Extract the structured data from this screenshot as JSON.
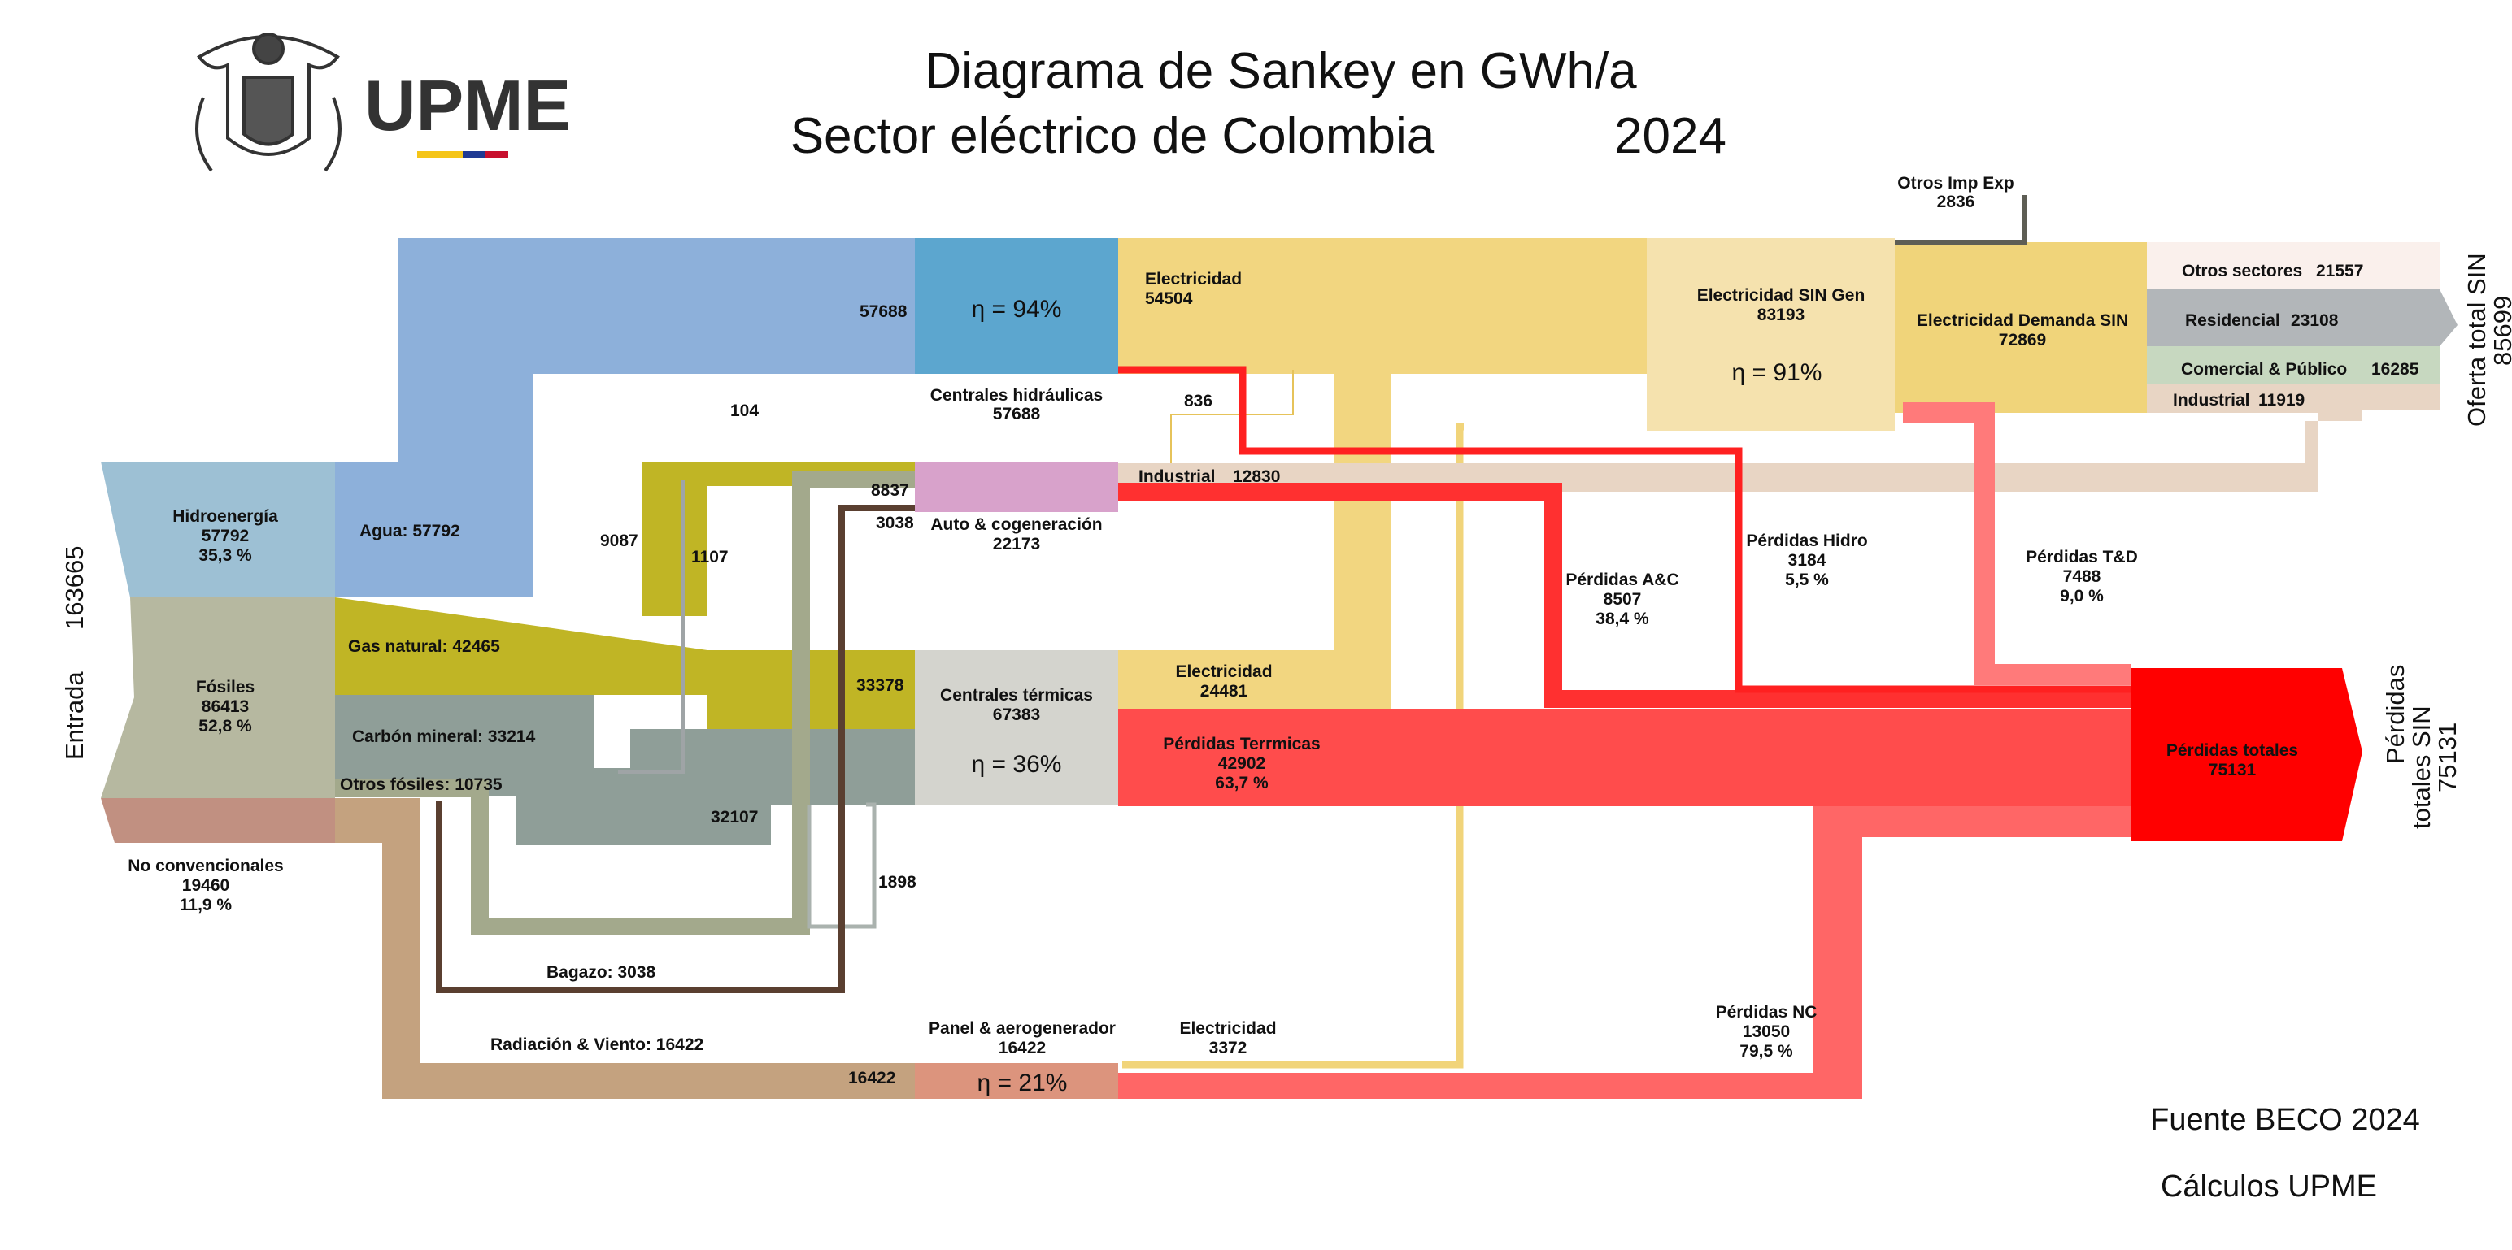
{
  "title": {
    "line1": "Diagrama de Sankey en GWh/a",
    "line2": "Sector eléctrico de Colombia",
    "year": "2024"
  },
  "logo": {
    "text": "UPME",
    "icon": "coat-of-arms-icon"
  },
  "colors": {
    "hydro": "#8DB0DA",
    "hydro_plant": "#5CA6CF",
    "gas": "#C0B525",
    "coal": "#8F9E98",
    "fossils": "#B6B8A0",
    "renewables": "#C4A27F",
    "electricity": "#F2D680",
    "losses": "#FF4C4C",
    "total_losses": "#FF0000",
    "industrial": "#E8D5C4",
    "cogeneration": "#D8A2CB",
    "thermal_plant": "#D4D4CE"
  },
  "input": {
    "entrada_label": "Entrada",
    "entrada_value": "163665",
    "hidroenergia": {
      "name": "Hidroenergía",
      "value": "57792",
      "pct": "35,3 %"
    },
    "fosiles": {
      "name": "Fósiles",
      "value": "86413",
      "pct": "52,8 %"
    },
    "no_convencionales": {
      "name": "No convencionales",
      "value": "19460",
      "pct": "11,9 %"
    }
  },
  "flows": {
    "agua": "Agua: 57792",
    "gas_natural": "Gas natural: 42465",
    "carbon_mineral": "Carbón mineral: 33214",
    "otros_fosiles": "Otros fósiles: 10735",
    "bagazo": "Bagazo: 3038",
    "radiacion_viento": "Radiación & Viento: 16422",
    "v57688": "57688",
    "v104": "104",
    "v9087": "9087",
    "v1107": "1107",
    "v8837": "8837",
    "v3038": "3038",
    "v33378": "33378",
    "v32107": "32107",
    "v1898": "1898",
    "v16422": "16422",
    "v836": "836"
  },
  "plants": {
    "hidraulicas": {
      "name": "Centrales hidráulicas",
      "value": "57688",
      "eta": "η  =  94%"
    },
    "cogeneracion": {
      "name": "Auto & cogeneración",
      "value": "22173"
    },
    "termicas": {
      "name": "Centrales térmicas",
      "value": "67383",
      "eta": "η  =  36%"
    },
    "panel": {
      "name": "Panel & aerogenerador",
      "value": "16422",
      "eta": "η  =  21%"
    }
  },
  "outputs": {
    "elec_hidro": {
      "name": "Electricidad",
      "value": "54504"
    },
    "industrial_cogen": {
      "name": "Industrial",
      "value": "12830"
    },
    "elec_termica": {
      "name": "Electricidad",
      "value": "24481"
    },
    "perdidas_termicas": {
      "name": "Pérdidas Terrmicas",
      "value": "42902",
      "pct": "63,7 %"
    },
    "elec_panel": {
      "name": "Electricidad",
      "value": "3372"
    },
    "elec_sin_gen": {
      "name": "Electricidad SIN Gen",
      "value": "83193",
      "eta": "η  =  91%"
    },
    "otros_imp_exp": {
      "name": "Otros Imp Exp",
      "value": "2836"
    },
    "elec_demanda": {
      "name": "Electricidad Demanda SIN",
      "value": "72869"
    }
  },
  "sectors": {
    "otros": {
      "name": "Otros sectores",
      "value": "21557"
    },
    "residencial": {
      "name": "Residencial",
      "value": "23108"
    },
    "comercial": {
      "name": "Comercial & Público",
      "value": "16285"
    },
    "industrial": {
      "name": "Industrial",
      "value": "11919"
    }
  },
  "losses": {
    "ac": {
      "name": "Pérdidas  A&C",
      "value": "8507",
      "pct": "38,4 %"
    },
    "hidro": {
      "name": "Pérdidas Hidro",
      "value": "3184",
      "pct": "5,5 %"
    },
    "td": {
      "name": "Pérdidas    T&D",
      "value": "7488",
      "pct": "9,0 %"
    },
    "nc": {
      "name": "Pérdidas NC",
      "value": "13050",
      "pct": "79,5 %"
    },
    "totales": {
      "name": "Pérdidas totales",
      "value": "75131"
    }
  },
  "right": {
    "oferta_label": "Oferta total SIN",
    "oferta_value": "85699",
    "perdidas_sin_line1": "Pérdidas",
    "perdidas_sin_line2": "totales SIN",
    "perdidas_sin_value": "75131"
  },
  "footer": {
    "fuente": "Fuente   BECO     2024",
    "calculos": "Cálculos UPME"
  }
}
